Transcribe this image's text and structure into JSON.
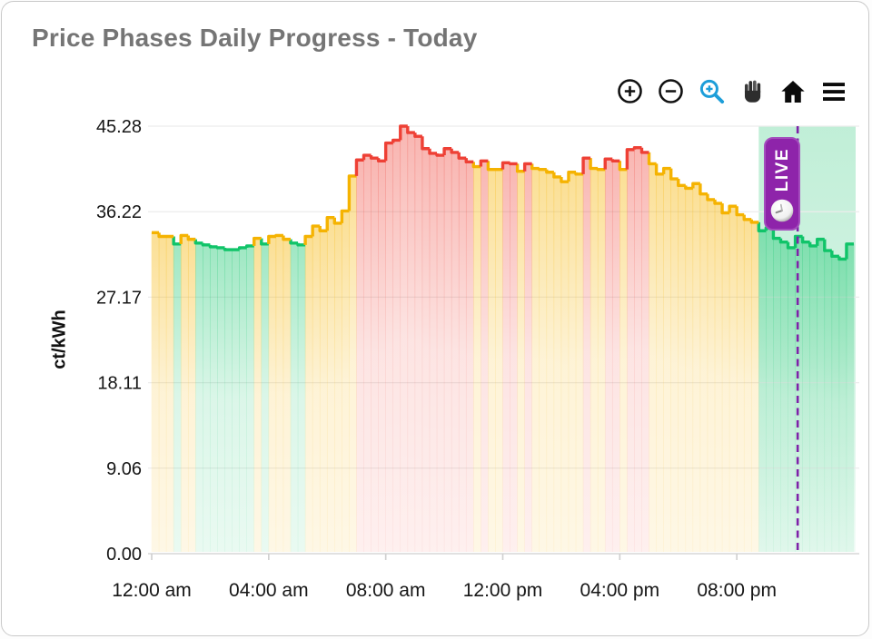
{
  "header": {
    "title": "Price Phases Daily Progress - Today"
  },
  "toolbar": {
    "buttons": [
      {
        "id": "zoom-in",
        "icon": "circle-plus-icon"
      },
      {
        "id": "zoom-out",
        "icon": "circle-minus-icon"
      },
      {
        "id": "box-zoom",
        "icon": "magnifier-plus-icon",
        "accent": "#1d9ed9"
      },
      {
        "id": "pan",
        "icon": "hand-icon"
      },
      {
        "id": "reset-view",
        "icon": "home-icon"
      },
      {
        "id": "menu",
        "icon": "hamburger-icon"
      }
    ]
  },
  "chart_data": {
    "type": "step-area",
    "title": "Price Phases Daily Progress - Today",
    "ylabel": "ct/kWh",
    "ymax": 45.28,
    "yticks": [
      0,
      9.06,
      18.11,
      27.17,
      36.22,
      45.28
    ],
    "ytick_labels": [
      "0.00",
      "9.06",
      "18.11",
      "27.17",
      "36.22",
      "45.28"
    ],
    "xtick_labels": [
      "12:00 am",
      "04:00 am",
      "08:00 am",
      "12:00 pm",
      "04:00 pm",
      "08:00 pm"
    ],
    "xtick_hours": [
      0,
      4,
      8,
      12,
      16,
      20
    ],
    "start_time": "00:00",
    "interval_minutes": 15,
    "values": [
      34.0,
      33.6,
      33.6,
      32.8,
      33.7,
      33.3,
      32.9,
      32.7,
      32.5,
      32.4,
      32.2,
      32.2,
      32.4,
      32.6,
      33.4,
      32.8,
      33.6,
      33.7,
      33.3,
      32.9,
      32.7,
      33.6,
      34.7,
      34.2,
      35.6,
      35.0,
      36.3,
      40.0,
      41.7,
      42.2,
      41.9,
      41.6,
      43.5,
      43.8,
      45.28,
      44.6,
      44.2,
      42.9,
      42.4,
      42.2,
      42.9,
      42.5,
      41.9,
      41.5,
      41.0,
      41.6,
      40.7,
      40.7,
      41.4,
      41.3,
      40.5,
      41.3,
      40.8,
      40.7,
      40.4,
      39.9,
      39.4,
      40.4,
      40.2,
      41.9,
      40.8,
      40.7,
      41.8,
      41.6,
      40.7,
      42.8,
      43.0,
      42.5,
      41.3,
      40.2,
      40.8,
      39.7,
      39.0,
      38.7,
      39.2,
      38.1,
      37.5,
      37.1,
      36.1,
      36.8,
      35.9,
      35.4,
      35.1,
      34.2,
      34.5,
      33.4,
      33.0,
      32.4,
      33.6,
      33.0,
      32.6,
      33.3,
      32.1,
      31.5,
      31.2,
      32.8
    ],
    "phases": [
      "y",
      "y",
      "y",
      "g",
      "y",
      "y",
      "g",
      "g",
      "g",
      "g",
      "g",
      "g",
      "g",
      "g",
      "y",
      "g",
      "y",
      "y",
      "y",
      "g",
      "g",
      "y",
      "y",
      "y",
      "y",
      "y",
      "y",
      "y",
      "r",
      "r",
      "r",
      "r",
      "r",
      "r",
      "r",
      "r",
      "r",
      "r",
      "r",
      "r",
      "r",
      "r",
      "r",
      "r",
      "y",
      "r",
      "y",
      "y",
      "r",
      "r",
      "y",
      "r",
      "y",
      "y",
      "y",
      "y",
      "y",
      "y",
      "y",
      "r",
      "y",
      "y",
      "r",
      "r",
      "y",
      "r",
      "r",
      "r",
      "y",
      "y",
      "y",
      "y",
      "y",
      "y",
      "y",
      "y",
      "y",
      "y",
      "y",
      "y",
      "y",
      "y",
      "y",
      "g",
      "g",
      "g",
      "g",
      "g",
      "g",
      "g",
      "g",
      "g",
      "g",
      "g",
      "g",
      "g"
    ],
    "phase_colors": {
      "g": "#10c469",
      "y": "#f5b301",
      "r": "#ee4035"
    },
    "live_region": {
      "start_hour": 20.75,
      "end_hour": 24,
      "color": "#2ec87a"
    },
    "now_line": {
      "hour": 22.08,
      "color": "#7e22a8",
      "style": "dashed"
    },
    "live_badge": {
      "label": "LIVE",
      "icon": "clock-icon",
      "color": "#8e24aa"
    }
  }
}
